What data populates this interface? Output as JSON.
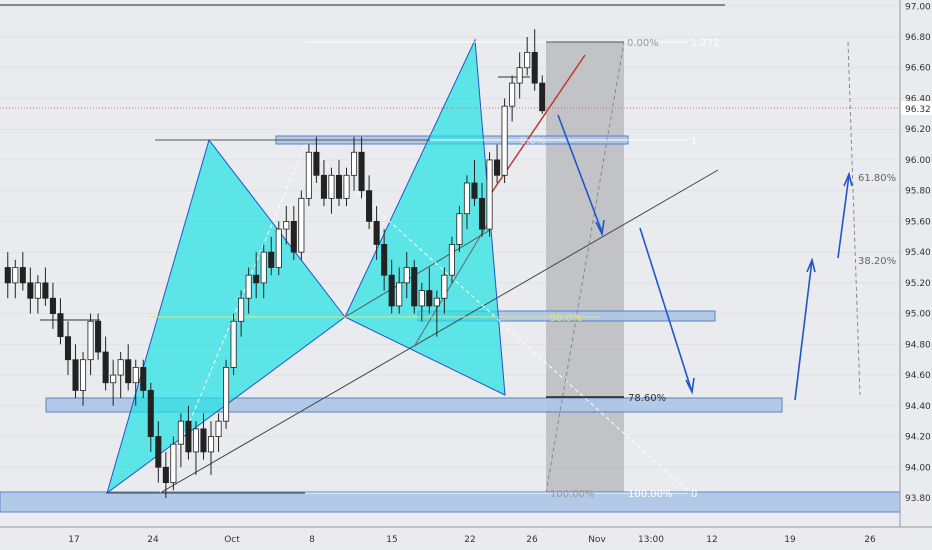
{
  "chart_data": {
    "type": "candlestick",
    "title": "",
    "y_axis": {
      "min": 93.8,
      "max": 97.0,
      "tick_labels": [
        "97.00",
        "96.80",
        "96.60",
        "96.40",
        "96.20",
        "96.00",
        "95.80",
        "95.60",
        "95.40",
        "95.20",
        "95.00",
        "94.80",
        "94.60",
        "94.40",
        "94.20",
        "94.00",
        "93.80"
      ],
      "current_price": "96.32"
    },
    "x_axis": {
      "tick_labels": [
        "17",
        "24",
        "Oct",
        "8",
        "15",
        "22",
        "26",
        "Nov",
        "13:00",
        "12",
        "19",
        "26"
      ]
    },
    "fib_levels": [
      {
        "label": "0.00%"
      },
      {
        "label": "1.272"
      },
      {
        "label": "1"
      },
      {
        "label": "61.80%"
      },
      {
        "label": "38.20%"
      },
      {
        "label": "78.60%"
      },
      {
        "label": "100.00%"
      },
      {
        "label": "100.00%"
      },
      {
        "label": "0"
      },
      {
        "label": "0.0%"
      },
      {
        "label": "50.0%"
      }
    ],
    "zones": [
      {
        "name": "resistance-zone",
        "price": 96.2
      },
      {
        "name": "mid-zone",
        "price": 95.0
      },
      {
        "name": "support-zone",
        "price": 94.45
      },
      {
        "name": "bottom-zone",
        "price": 93.8
      }
    ],
    "candles": [
      {
        "o": 95.3,
        "h": 95.4,
        "l": 95.1,
        "c": 95.2
      },
      {
        "o": 95.2,
        "h": 95.35,
        "l": 95.1,
        "c": 95.3
      },
      {
        "o": 95.3,
        "h": 95.4,
        "l": 95.15,
        "c": 95.2
      },
      {
        "o": 95.2,
        "h": 95.3,
        "l": 95.0,
        "c": 95.1
      },
      {
        "o": 95.1,
        "h": 95.25,
        "l": 95.0,
        "c": 95.2
      },
      {
        "o": 95.2,
        "h": 95.3,
        "l": 95.05,
        "c": 95.1
      },
      {
        "o": 95.1,
        "h": 95.2,
        "l": 94.9,
        "c": 95.0
      },
      {
        "o": 95.0,
        "h": 95.1,
        "l": 94.8,
        "c": 94.85
      },
      {
        "o": 94.85,
        "h": 94.95,
        "l": 94.6,
        "c": 94.7
      },
      {
        "o": 94.7,
        "h": 94.8,
        "l": 94.45,
        "c": 94.5
      },
      {
        "o": 94.5,
        "h": 94.75,
        "l": 94.4,
        "c": 94.7
      },
      {
        "o": 94.7,
        "h": 95.0,
        "l": 94.6,
        "c": 94.95
      },
      {
        "o": 94.95,
        "h": 95.0,
        "l": 94.7,
        "c": 94.75
      },
      {
        "o": 94.75,
        "h": 94.85,
        "l": 94.5,
        "c": 94.55
      },
      {
        "o": 94.55,
        "h": 94.7,
        "l": 94.4,
        "c": 94.6
      },
      {
        "o": 94.6,
        "h": 94.75,
        "l": 94.45,
        "c": 94.7
      },
      {
        "o": 94.7,
        "h": 94.8,
        "l": 94.5,
        "c": 94.55
      },
      {
        "o": 94.55,
        "h": 94.7,
        "l": 94.4,
        "c": 94.65
      },
      {
        "o": 94.65,
        "h": 94.7,
        "l": 94.45,
        "c": 94.5
      },
      {
        "o": 94.5,
        "h": 94.55,
        "l": 94.1,
        "c": 94.2
      },
      {
        "o": 94.2,
        "h": 94.3,
        "l": 93.9,
        "c": 94.0
      },
      {
        "o": 94.0,
        "h": 94.1,
        "l": 93.8,
        "c": 93.9
      },
      {
        "o": 93.9,
        "h": 94.2,
        "l": 93.85,
        "c": 94.15
      },
      {
        "o": 94.15,
        "h": 94.35,
        "l": 94.0,
        "c": 94.3
      },
      {
        "o": 94.3,
        "h": 94.4,
        "l": 94.05,
        "c": 94.1
      },
      {
        "o": 94.1,
        "h": 94.3,
        "l": 93.95,
        "c": 94.25
      },
      {
        "o": 94.25,
        "h": 94.35,
        "l": 94.05,
        "c": 94.1
      },
      {
        "o": 94.1,
        "h": 94.3,
        "l": 93.95,
        "c": 94.2
      },
      {
        "o": 94.2,
        "h": 94.35,
        "l": 94.1,
        "c": 94.3
      },
      {
        "o": 94.3,
        "h": 94.7,
        "l": 94.25,
        "c": 94.65
      },
      {
        "o": 94.65,
        "h": 95.0,
        "l": 94.6,
        "c": 94.95
      },
      {
        "o": 94.95,
        "h": 95.15,
        "l": 94.85,
        "c": 95.1
      },
      {
        "o": 95.1,
        "h": 95.3,
        "l": 95.0,
        "c": 95.25
      },
      {
        "o": 95.25,
        "h": 95.4,
        "l": 95.1,
        "c": 95.2
      },
      {
        "o": 95.2,
        "h": 95.45,
        "l": 95.1,
        "c": 95.4
      },
      {
        "o": 95.4,
        "h": 95.5,
        "l": 95.25,
        "c": 95.3
      },
      {
        "o": 95.3,
        "h": 95.6,
        "l": 95.25,
        "c": 95.55
      },
      {
        "o": 95.55,
        "h": 95.7,
        "l": 95.45,
        "c": 95.6
      },
      {
        "o": 95.6,
        "h": 95.7,
        "l": 95.35,
        "c": 95.4
      },
      {
        "o": 95.4,
        "h": 95.8,
        "l": 95.35,
        "c": 95.75
      },
      {
        "o": 95.75,
        "h": 96.1,
        "l": 95.7,
        "c": 96.05
      },
      {
        "o": 96.05,
        "h": 96.15,
        "l": 95.85,
        "c": 95.9
      },
      {
        "o": 95.9,
        "h": 96.0,
        "l": 95.7,
        "c": 95.75
      },
      {
        "o": 95.75,
        "h": 95.95,
        "l": 95.65,
        "c": 95.9
      },
      {
        "o": 95.9,
        "h": 96.0,
        "l": 95.7,
        "c": 95.75
      },
      {
        "o": 95.75,
        "h": 95.95,
        "l": 95.7,
        "c": 95.9
      },
      {
        "o": 95.9,
        "h": 96.15,
        "l": 95.8,
        "c": 96.05
      },
      {
        "o": 96.05,
        "h": 96.15,
        "l": 95.75,
        "c": 95.8
      },
      {
        "o": 95.8,
        "h": 95.9,
        "l": 95.55,
        "c": 95.6
      },
      {
        "o": 95.6,
        "h": 95.7,
        "l": 95.35,
        "c": 95.45
      },
      {
        "o": 95.45,
        "h": 95.55,
        "l": 95.15,
        "c": 95.25
      },
      {
        "o": 95.25,
        "h": 95.35,
        "l": 95.0,
        "c": 95.05
      },
      {
        "o": 95.05,
        "h": 95.3,
        "l": 95.0,
        "c": 95.2
      },
      {
        "o": 95.2,
        "h": 95.4,
        "l": 95.1,
        "c": 95.3
      },
      {
        "o": 95.3,
        "h": 95.35,
        "l": 95.0,
        "c": 95.05
      },
      {
        "o": 95.05,
        "h": 95.2,
        "l": 94.95,
        "c": 95.15
      },
      {
        "o": 95.15,
        "h": 95.3,
        "l": 95.0,
        "c": 95.05
      },
      {
        "o": 95.05,
        "h": 95.15,
        "l": 94.85,
        "c": 95.1
      },
      {
        "o": 95.1,
        "h": 95.3,
        "l": 95.0,
        "c": 95.25
      },
      {
        "o": 95.25,
        "h": 95.5,
        "l": 95.2,
        "c": 95.45
      },
      {
        "o": 95.45,
        "h": 95.7,
        "l": 95.4,
        "c": 95.65
      },
      {
        "o": 95.65,
        "h": 95.9,
        "l": 95.55,
        "c": 95.85
      },
      {
        "o": 95.85,
        "h": 96.0,
        "l": 95.7,
        "c": 95.75
      },
      {
        "o": 95.75,
        "h": 95.85,
        "l": 95.5,
        "c": 95.55
      },
      {
        "o": 95.55,
        "h": 96.05,
        "l": 95.5,
        "c": 96.0
      },
      {
        "o": 96.0,
        "h": 96.1,
        "l": 95.85,
        "c": 95.9
      },
      {
        "o": 95.9,
        "h": 96.4,
        "l": 95.85,
        "c": 96.35
      },
      {
        "o": 96.35,
        "h": 96.55,
        "l": 96.25,
        "c": 96.5
      },
      {
        "o": 96.5,
        "h": 96.7,
        "l": 96.4,
        "c": 96.6
      },
      {
        "o": 96.6,
        "h": 96.8,
        "l": 96.55,
        "c": 96.7
      },
      {
        "o": 96.7,
        "h": 96.85,
        "l": 96.45,
        "c": 96.5
      },
      {
        "o": 96.5,
        "h": 96.55,
        "l": 96.3,
        "c": 96.32
      }
    ]
  }
}
